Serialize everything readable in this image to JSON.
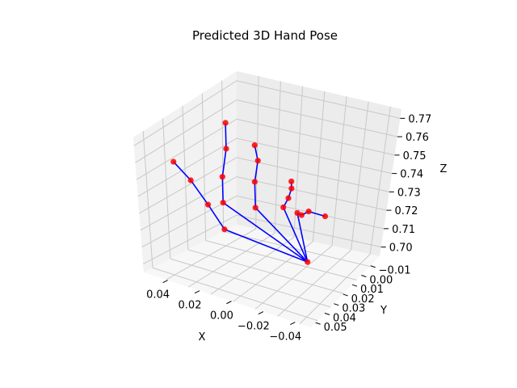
{
  "chart_data": {
    "type": "scatter3d",
    "title": "Predicted 3D Hand Pose",
    "xlabel": "X",
    "ylabel": "Y",
    "zlabel": "Z",
    "xlim": [
      -0.05,
      0.055
    ],
    "ylim": [
      -0.02,
      0.055
    ],
    "zlim": [
      0.695,
      0.775
    ],
    "x_ticks": [
      "0.04",
      "0.02",
      "0.00",
      "−0.02",
      "−0.04"
    ],
    "y_ticks": [
      "−0.01",
      "0.00",
      "0.01",
      "0.02",
      "0.03",
      "0.04",
      "0.05"
    ],
    "z_ticks": [
      "0.77",
      "0.76",
      "0.75",
      "0.74",
      "0.73",
      "0.72",
      "0.71",
      "0.70"
    ],
    "colors": {
      "joints": "#ff0000",
      "bones": "#0000ff",
      "pane_left": "#f2f2f2",
      "pane_back": "#ececec",
      "pane_floor": "#f7f7f7"
    },
    "joints": [
      {
        "x": -0.005,
        "y": 0.045,
        "z": 0.704
      },
      {
        "x": -0.045,
        "y": 0.02,
        "z": 0.725
      },
      {
        "x": -0.042,
        "y": 0.01,
        "z": 0.735
      },
      {
        "x": -0.04,
        "y": 0.0,
        "z": 0.745
      },
      {
        "x": -0.038,
        "y": -0.01,
        "z": 0.752
      },
      {
        "x": -0.025,
        "y": 0.01,
        "z": 0.732
      },
      {
        "x": -0.015,
        "y": 0.005,
        "z": 0.742
      },
      {
        "x": 0.0,
        "y": 0.0,
        "z": 0.752
      },
      {
        "x": 0.01,
        "y": -0.005,
        "z": 0.762
      },
      {
        "x": -0.01,
        "y": 0.02,
        "z": 0.728
      },
      {
        "x": 0.0,
        "y": 0.015,
        "z": 0.738
      },
      {
        "x": 0.01,
        "y": 0.012,
        "z": 0.746
      },
      {
        "x": 0.015,
        "y": 0.008,
        "z": 0.752
      },
      {
        "x": 0.0,
        "y": 0.03,
        "z": 0.728
      },
      {
        "x": 0.01,
        "y": 0.028,
        "z": 0.73
      },
      {
        "x": 0.02,
        "y": 0.025,
        "z": 0.732
      },
      {
        "x": 0.022,
        "y": 0.024,
        "z": 0.735
      },
      {
        "x": 0.005,
        "y": 0.035,
        "z": 0.725
      },
      {
        "x": 0.012,
        "y": 0.034,
        "z": 0.722
      },
      {
        "x": 0.02,
        "y": 0.034,
        "z": 0.722
      },
      {
        "x": 0.03,
        "y": 0.038,
        "z": 0.718
      }
    ],
    "bones": [
      [
        0,
        1
      ],
      [
        1,
        2
      ],
      [
        2,
        3
      ],
      [
        3,
        4
      ],
      [
        0,
        5
      ],
      [
        5,
        6
      ],
      [
        6,
        7
      ],
      [
        7,
        8
      ],
      [
        0,
        9
      ],
      [
        9,
        10
      ],
      [
        10,
        11
      ],
      [
        11,
        12
      ],
      [
        0,
        13
      ],
      [
        13,
        14
      ],
      [
        14,
        15
      ],
      [
        15,
        16
      ],
      [
        0,
        17
      ],
      [
        17,
        18
      ],
      [
        18,
        19
      ],
      [
        19,
        20
      ]
    ]
  }
}
